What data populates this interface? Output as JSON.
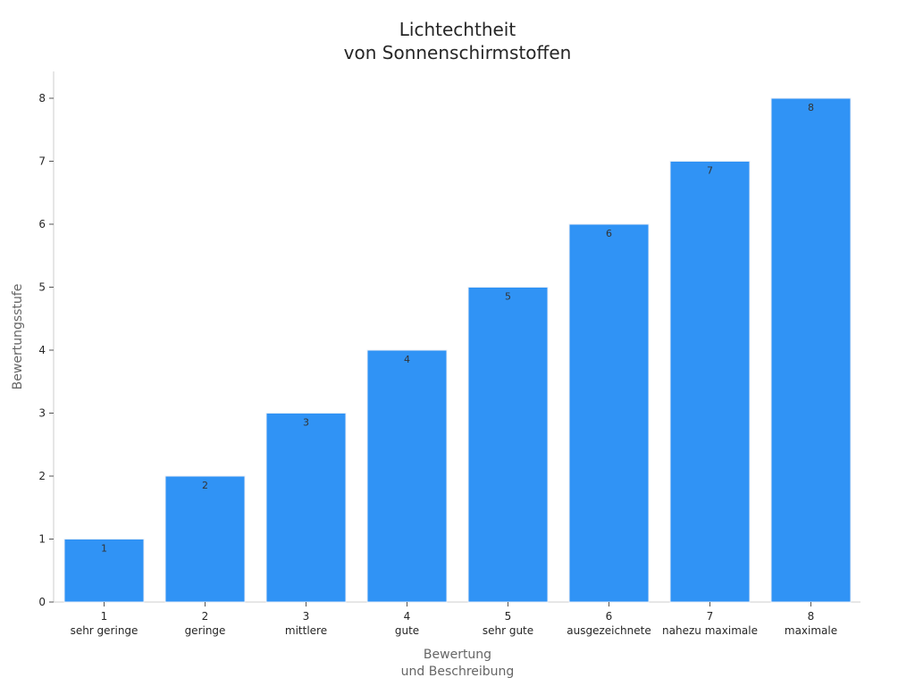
{
  "chart_data": {
    "type": "bar",
    "title": [
      "Lichtechtheit",
      "von Sonnenschirmstoffen"
    ],
    "xlabel": [
      "Bewertung",
      "und Beschreibung"
    ],
    "ylabel": "Bewertungsstufe",
    "categories": [
      "1",
      "2",
      "3",
      "4",
      "5",
      "6",
      "7",
      "8"
    ],
    "descriptions": [
      "sehr geringe",
      "geringe",
      "mittlere",
      "gute",
      "sehr gute",
      "ausgezeichnete",
      "nahezu maximale",
      "maximale"
    ],
    "values": [
      1,
      2,
      3,
      4,
      5,
      6,
      7,
      8
    ],
    "data_labels": [
      "1",
      "2",
      "3",
      "4",
      "5",
      "6",
      "7",
      "8"
    ],
    "ylim": [
      0,
      8.4
    ],
    "yticks": [
      0,
      1,
      2,
      3,
      4,
      5,
      6,
      7,
      8
    ],
    "grid": false,
    "bar_color": "#3093f5",
    "bar_edge_color": "#e8eef6",
    "axis_color": "#cccccc"
  }
}
